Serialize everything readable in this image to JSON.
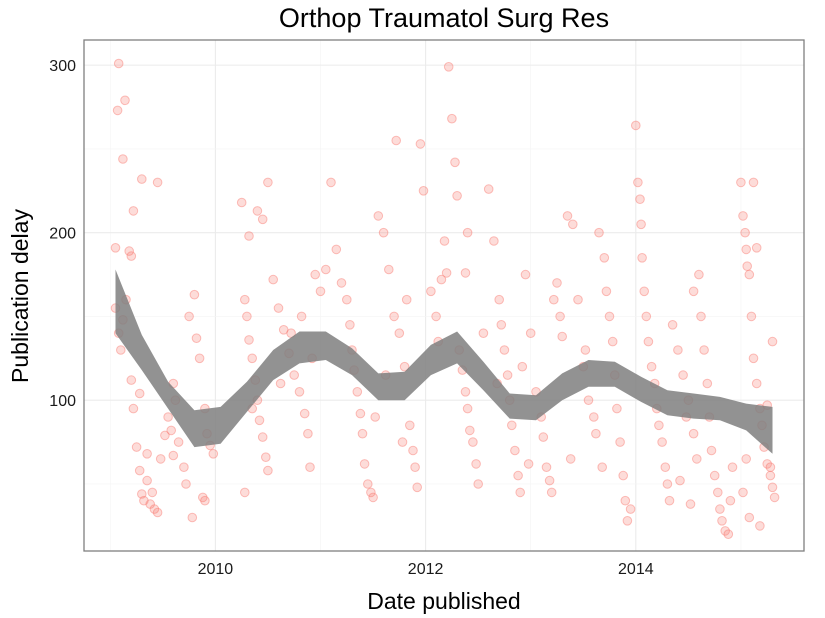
{
  "chart_data": {
    "type": "scatter",
    "title": "Orthop Traumatol Surg Res",
    "xlabel": "Date published",
    "ylabel": "Publication delay",
    "x_tick_labels": [
      "2010",
      "2012",
      "2014"
    ],
    "y_tick_labels": [
      "100",
      "200",
      "300"
    ],
    "x_ticks": [
      2010,
      2012,
      2014
    ],
    "y_ticks": [
      100,
      200,
      300
    ],
    "xlim": [
      2008.75,
      2015.6
    ],
    "ylim": [
      10,
      315
    ],
    "grid": true,
    "legend": "none",
    "point_color": "#f8766d",
    "band_color": "#7f7f7f",
    "series": [
      {
        "values": [
          [
            2009.05,
            191
          ],
          [
            2009.07,
            273
          ],
          [
            2009.08,
            301
          ],
          [
            2009.12,
            244
          ],
          [
            2009.14,
            279
          ],
          [
            2009.18,
            189
          ],
          [
            2009.2,
            186
          ],
          [
            2009.22,
            213
          ],
          [
            2009.3,
            232
          ],
          [
            2009.45,
            230
          ],
          [
            2009.05,
            155
          ],
          [
            2009.08,
            140
          ],
          [
            2009.1,
            130
          ],
          [
            2009.12,
            148
          ],
          [
            2009.15,
            160
          ],
          [
            2009.2,
            112
          ],
          [
            2009.22,
            95
          ],
          [
            2009.25,
            72
          ],
          [
            2009.28,
            58
          ],
          [
            2009.3,
            44
          ],
          [
            2009.32,
            40
          ],
          [
            2009.35,
            52
          ],
          [
            2009.38,
            38
          ],
          [
            2009.4,
            45
          ],
          [
            2009.42,
            35
          ],
          [
            2009.45,
            33
          ],
          [
            2009.48,
            65
          ],
          [
            2009.52,
            79
          ],
          [
            2009.55,
            90
          ],
          [
            2009.6,
            110
          ],
          [
            2009.62,
            100
          ],
          [
            2009.65,
            75
          ],
          [
            2009.7,
            60
          ],
          [
            2009.72,
            50
          ],
          [
            2009.75,
            150
          ],
          [
            2009.8,
            163
          ],
          [
            2009.82,
            137
          ],
          [
            2009.85,
            125
          ],
          [
            2009.9,
            95
          ],
          [
            2009.92,
            80
          ],
          [
            2009.95,
            73
          ],
          [
            2009.98,
            68
          ],
          [
            2009.88,
            42
          ],
          [
            2009.9,
            40
          ],
          [
            2009.78,
            30
          ],
          [
            2009.6,
            67
          ],
          [
            2009.58,
            82
          ],
          [
            2009.35,
            68
          ],
          [
            2009.28,
            104
          ],
          [
            2010.25,
            218
          ],
          [
            2010.32,
            198
          ],
          [
            2010.4,
            213
          ],
          [
            2010.45,
            208
          ],
          [
            2010.5,
            230
          ],
          [
            2010.28,
            160
          ],
          [
            2010.3,
            150
          ],
          [
            2010.32,
            136
          ],
          [
            2010.35,
            125
          ],
          [
            2010.38,
            112
          ],
          [
            2010.4,
            100
          ],
          [
            2010.42,
            88
          ],
          [
            2010.45,
            78
          ],
          [
            2010.48,
            66
          ],
          [
            2010.5,
            58
          ],
          [
            2010.28,
            45
          ],
          [
            2010.55,
            172
          ],
          [
            2010.6,
            155
          ],
          [
            2010.65,
            142
          ],
          [
            2010.7,
            128
          ],
          [
            2010.75,
            115
          ],
          [
            2010.8,
            105
          ],
          [
            2010.85,
            92
          ],
          [
            2010.88,
            80
          ],
          [
            2010.9,
            60
          ],
          [
            2010.95,
            175
          ],
          [
            2011.0,
            165
          ],
          [
            2011.05,
            178
          ],
          [
            2011.1,
            230
          ],
          [
            2011.15,
            190
          ],
          [
            2010.35,
            95
          ],
          [
            2010.62,
            110
          ],
          [
            2010.72,
            140
          ],
          [
            2010.82,
            150
          ],
          [
            2010.92,
            125
          ],
          [
            2011.2,
            170
          ],
          [
            2011.25,
            160
          ],
          [
            2011.28,
            145
          ],
          [
            2011.3,
            130
          ],
          [
            2011.32,
            118
          ],
          [
            2011.35,
            105
          ],
          [
            2011.38,
            92
          ],
          [
            2011.4,
            80
          ],
          [
            2011.42,
            62
          ],
          [
            2011.45,
            50
          ],
          [
            2011.48,
            45
          ],
          [
            2011.5,
            42
          ],
          [
            2011.55,
            210
          ],
          [
            2011.6,
            200
          ],
          [
            2011.65,
            178
          ],
          [
            2011.7,
            150
          ],
          [
            2011.75,
            140
          ],
          [
            2011.8,
            120
          ],
          [
            2011.85,
            85
          ],
          [
            2011.88,
            70
          ],
          [
            2011.9,
            60
          ],
          [
            2011.92,
            48
          ],
          [
            2011.72,
            255
          ],
          [
            2011.95,
            253
          ],
          [
            2011.98,
            225
          ],
          [
            2011.78,
            75
          ],
          [
            2011.82,
            160
          ],
          [
            2011.52,
            90
          ],
          [
            2011.62,
            115
          ],
          [
            2012.05,
            165
          ],
          [
            2012.1,
            150
          ],
          [
            2012.12,
            135
          ],
          [
            2012.15,
            172
          ],
          [
            2012.18,
            195
          ],
          [
            2012.2,
            176
          ],
          [
            2012.22,
            299
          ],
          [
            2012.25,
            268
          ],
          [
            2012.28,
            242
          ],
          [
            2012.3,
            222
          ],
          [
            2012.32,
            130
          ],
          [
            2012.35,
            118
          ],
          [
            2012.38,
            105
          ],
          [
            2012.4,
            95
          ],
          [
            2012.42,
            82
          ],
          [
            2012.45,
            75
          ],
          [
            2012.48,
            62
          ],
          [
            2012.5,
            50
          ],
          [
            2012.38,
            176
          ],
          [
            2012.4,
            200
          ],
          [
            2012.6,
            226
          ],
          [
            2012.65,
            195
          ],
          [
            2012.7,
            160
          ],
          [
            2012.72,
            145
          ],
          [
            2012.75,
            130
          ],
          [
            2012.78,
            115
          ],
          [
            2012.8,
            100
          ],
          [
            2012.82,
            85
          ],
          [
            2012.85,
            70
          ],
          [
            2012.88,
            55
          ],
          [
            2012.9,
            45
          ],
          [
            2012.95,
            175
          ],
          [
            2013.0,
            140
          ],
          [
            2013.05,
            105
          ],
          [
            2013.1,
            90
          ],
          [
            2012.55,
            140
          ],
          [
            2012.68,
            110
          ],
          [
            2012.92,
            120
          ],
          [
            2012.98,
            62
          ],
          [
            2013.12,
            78
          ],
          [
            2013.15,
            60
          ],
          [
            2013.18,
            52
          ],
          [
            2013.2,
            45
          ],
          [
            2013.22,
            160
          ],
          [
            2013.25,
            170
          ],
          [
            2013.28,
            150
          ],
          [
            2013.3,
            138
          ],
          [
            2013.35,
            210
          ],
          [
            2013.4,
            205
          ],
          [
            2013.45,
            160
          ],
          [
            2013.5,
            120
          ],
          [
            2013.55,
            100
          ],
          [
            2013.6,
            90
          ],
          [
            2013.62,
            80
          ],
          [
            2013.65,
            200
          ],
          [
            2013.7,
            185
          ],
          [
            2013.72,
            165
          ],
          [
            2013.75,
            150
          ],
          [
            2013.78,
            135
          ],
          [
            2013.8,
            115
          ],
          [
            2013.82,
            95
          ],
          [
            2013.85,
            75
          ],
          [
            2013.88,
            55
          ],
          [
            2013.9,
            40
          ],
          [
            2013.92,
            28
          ],
          [
            2013.95,
            35
          ],
          [
            2013.38,
            65
          ],
          [
            2013.52,
            130
          ],
          [
            2013.68,
            60
          ],
          [
            2014.0,
            264
          ],
          [
            2014.02,
            230
          ],
          [
            2014.04,
            220
          ],
          [
            2014.05,
            205
          ],
          [
            2014.06,
            185
          ],
          [
            2014.08,
            165
          ],
          [
            2014.1,
            150
          ],
          [
            2014.12,
            135
          ],
          [
            2014.15,
            120
          ],
          [
            2014.18,
            110
          ],
          [
            2014.2,
            95
          ],
          [
            2014.22,
            85
          ],
          [
            2014.25,
            75
          ],
          [
            2014.28,
            60
          ],
          [
            2014.3,
            50
          ],
          [
            2014.32,
            40
          ],
          [
            2014.35,
            145
          ],
          [
            2014.4,
            130
          ],
          [
            2014.45,
            115
          ],
          [
            2014.5,
            100
          ],
          [
            2014.55,
            165
          ],
          [
            2014.6,
            175
          ],
          [
            2014.62,
            150
          ],
          [
            2014.65,
            130
          ],
          [
            2014.68,
            110
          ],
          [
            2014.7,
            90
          ],
          [
            2014.72,
            70
          ],
          [
            2014.75,
            55
          ],
          [
            2014.78,
            45
          ],
          [
            2014.8,
            35
          ],
          [
            2014.82,
            28
          ],
          [
            2014.85,
            22
          ],
          [
            2014.88,
            20
          ],
          [
            2014.9,
            40
          ],
          [
            2014.92,
            60
          ],
          [
            2014.55,
            80
          ],
          [
            2014.58,
            65
          ],
          [
            2014.42,
            52
          ],
          [
            2014.48,
            90
          ],
          [
            2014.52,
            38
          ],
          [
            2015.0,
            230
          ],
          [
            2015.02,
            210
          ],
          [
            2015.04,
            200
          ],
          [
            2015.05,
            190
          ],
          [
            2015.06,
            180
          ],
          [
            2015.08,
            175
          ],
          [
            2015.1,
            150
          ],
          [
            2015.12,
            125
          ],
          [
            2015.15,
            110
          ],
          [
            2015.18,
            95
          ],
          [
            2015.2,
            85
          ],
          [
            2015.22,
            72
          ],
          [
            2015.25,
            62
          ],
          [
            2015.28,
            55
          ],
          [
            2015.3,
            48
          ],
          [
            2015.32,
            42
          ],
          [
            2015.12,
            230
          ],
          [
            2015.15,
            191
          ],
          [
            2015.25,
            97
          ],
          [
            2015.3,
            135
          ],
          [
            2015.02,
            45
          ],
          [
            2015.08,
            30
          ],
          [
            2015.18,
            25
          ],
          [
            2015.28,
            60
          ],
          [
            2015.05,
            65
          ]
        ]
      }
    ],
    "smooth_band": {
      "x": [
        2009.05,
        2009.3,
        2009.55,
        2009.8,
        2010.05,
        2010.3,
        2010.55,
        2010.8,
        2011.05,
        2011.3,
        2011.55,
        2011.8,
        2012.05,
        2012.3,
        2012.55,
        2012.8,
        2013.05,
        2013.3,
        2013.55,
        2013.8,
        2014.05,
        2014.3,
        2014.55,
        2014.8,
        2015.05,
        2015.3
      ],
      "lower": [
        140,
        118,
        95,
        72,
        74,
        93,
        112,
        122,
        124,
        115,
        100,
        100,
        115,
        122,
        106,
        89,
        88,
        100,
        108,
        108,
        99,
        91,
        89,
        88,
        82,
        68
      ],
      "upper": [
        178,
        139,
        111,
        94,
        96,
        111,
        130,
        141,
        141,
        131,
        116,
        117,
        133,
        141,
        123,
        104,
        103,
        116,
        124,
        123,
        114,
        106,
        104,
        102,
        98,
        96
      ]
    }
  }
}
